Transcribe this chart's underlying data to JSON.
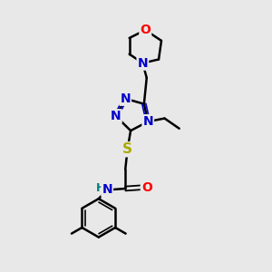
{
  "bg_color": "#e8e8e8",
  "atom_colors": {
    "C": "#000000",
    "N": "#0000cc",
    "O": "#ff0000",
    "S": "#aaaa00",
    "H": "#008080"
  },
  "bond_color": "#000000",
  "bond_width": 1.8
}
